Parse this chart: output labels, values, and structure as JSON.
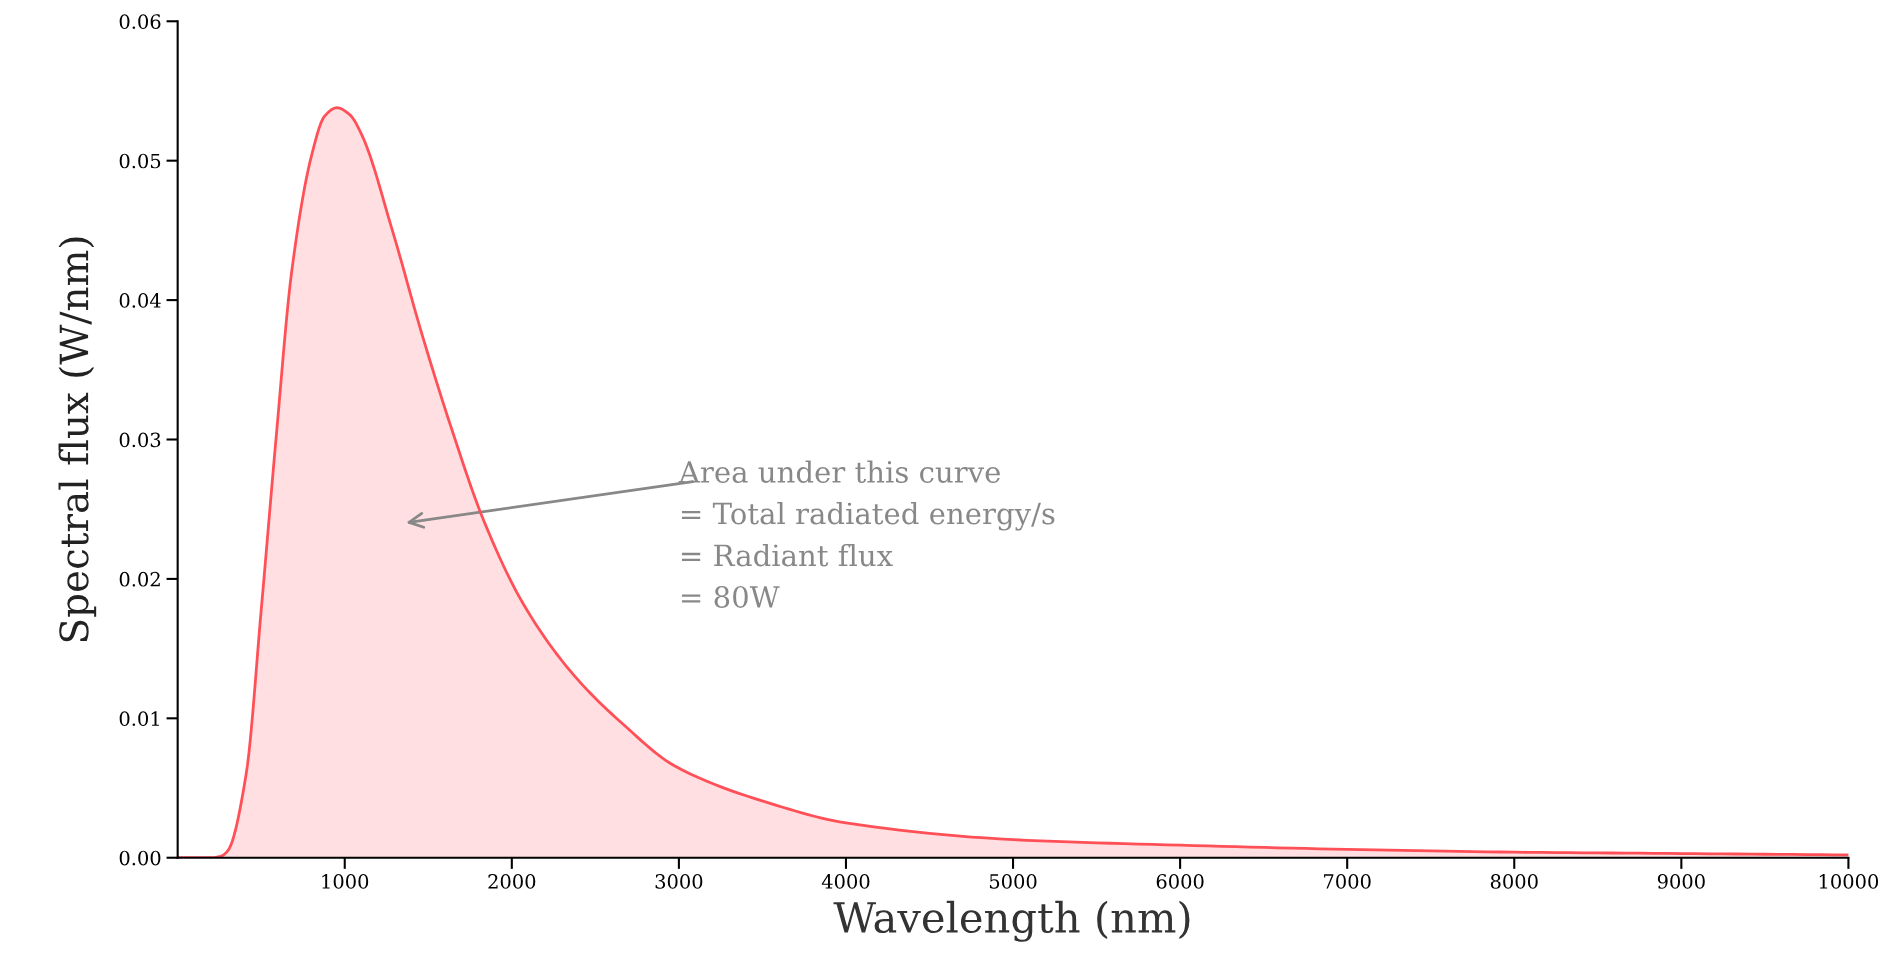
{
  "chart_data": {
    "type": "area",
    "xlabel": "Wavelength (nm)",
    "ylabel": "Spectral flux (W/nm)",
    "x": [
      0,
      200,
      257,
      300,
      410,
      501,
      592,
      682,
      802,
      880,
      953,
      1030,
      1104,
      1285,
      1466,
      1647,
      1828,
      2069,
      2371,
      2673,
      2973,
      3546,
      4000,
      5000,
      6000,
      7000,
      8000,
      9000,
      10000
    ],
    "series": [
      {
        "color": "#ff5057",
        "values": [
          0,
          0,
          0.0001,
          0.0005,
          0.006,
          0.0179,
          0.0305,
          0.042,
          0.0504,
          0.0532,
          0.0538,
          0.0533,
          0.0518,
          0.045,
          0.0374,
          0.0305,
          0.0243,
          0.0182,
          0.0131,
          0.0095,
          0.0066,
          0.0039,
          0.0025,
          0.0013,
          0.0009,
          0.0006,
          0.0004,
          0.0003,
          0.0002
        ]
      }
    ],
    "xlim": [
      0,
      10000
    ],
    "ylim": [
      0,
      0.06
    ],
    "xticks": [
      1000,
      2000,
      3000,
      4000,
      5000,
      6000,
      7000,
      8000,
      9000,
      10000
    ],
    "yticks": [
      {
        "value": 0,
        "label": "0.00"
      },
      {
        "value": 0.01,
        "label": "0.01"
      },
      {
        "value": 0.02,
        "label": "0.02"
      },
      {
        "value": 0.03,
        "label": "0.03"
      },
      {
        "value": 0.04,
        "label": "0.04"
      },
      {
        "value": 0.05,
        "label": "0.05"
      },
      {
        "value": 0.06,
        "label": "0.06"
      }
    ],
    "annotations": [
      "Area under this curve\n= Total radiated energy/s\n= Radiant flux\n= 80W"
    ],
    "grid": false,
    "legend": false
  }
}
